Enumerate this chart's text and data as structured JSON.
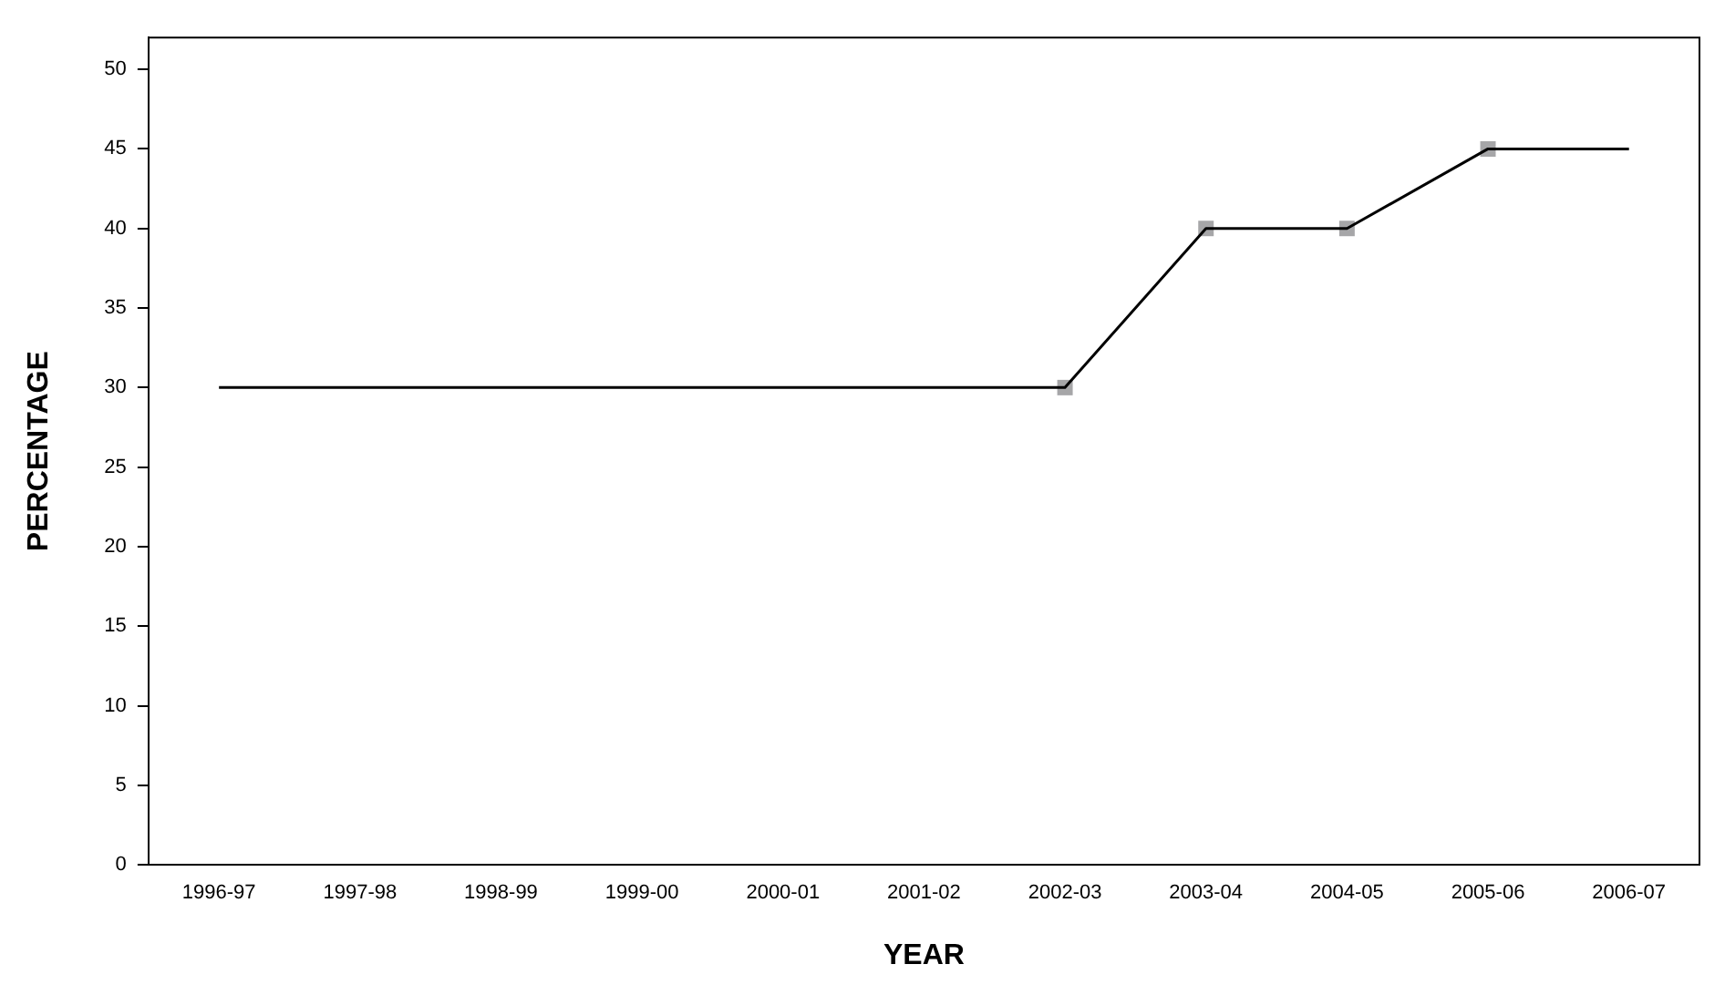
{
  "chart_data": {
    "type": "line",
    "xlabel": "YEAR",
    "ylabel": "PERCENTAGE",
    "categories": [
      "1996-97",
      "1997-98",
      "1998-99",
      "1999-00",
      "2000-01",
      "2001-02",
      "2002-03",
      "2003-04",
      "2004-05",
      "2005-06",
      "2006-07"
    ],
    "series": [
      {
        "color": "#000000",
        "marker": "none",
        "values": [
          30,
          30,
          30,
          30,
          30,
          30,
          30,
          40,
          40,
          45,
          45
        ]
      },
      {
        "type": "scatter",
        "color": "#a6a6a8",
        "marker": "square",
        "values": [
          null,
          null,
          null,
          null,
          null,
          null,
          30,
          40,
          40,
          45,
          null
        ]
      }
    ],
    "ylim": [
      0,
      52
    ],
    "yticks": [
      0,
      5,
      10,
      15,
      20,
      25,
      30,
      35,
      40,
      45,
      50
    ],
    "grid": false,
    "legend": false
  }
}
